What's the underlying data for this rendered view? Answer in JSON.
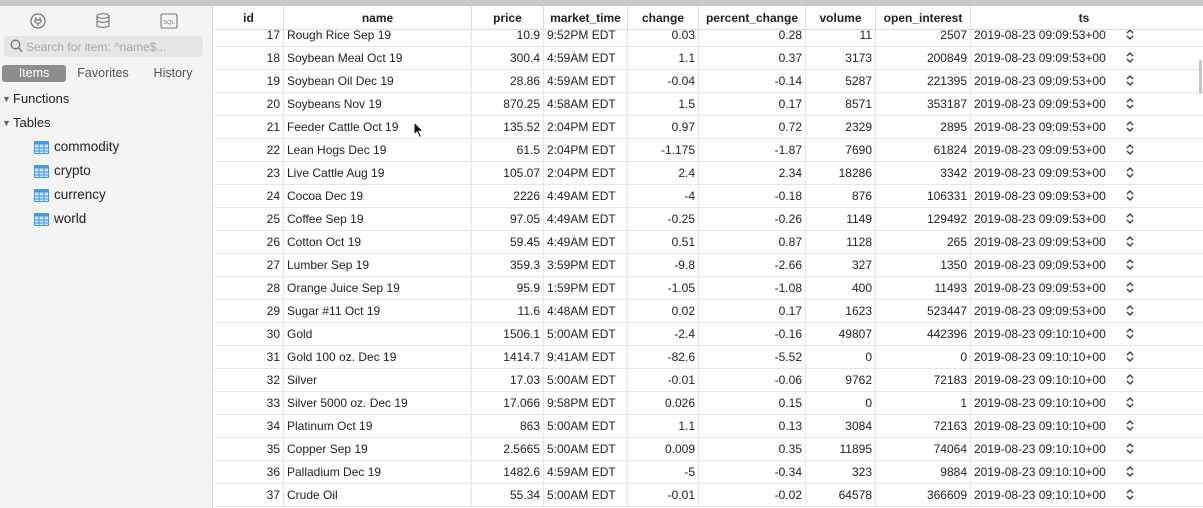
{
  "sidebar": {
    "toolbar_icons": [
      "connection-icon",
      "database-icon",
      "sql-icon"
    ],
    "sql_icon_text": "SQL",
    "search": {
      "placeholder": "Search for item: ^name$...",
      "value": ""
    },
    "tabs": [
      {
        "label": "Items",
        "active": true
      },
      {
        "label": "Favorites",
        "active": false
      },
      {
        "label": "History",
        "active": false
      }
    ],
    "sections": {
      "functions": "Functions",
      "tables": "Tables"
    },
    "tables": [
      "commodity",
      "crypto",
      "currency",
      "world"
    ]
  },
  "grid": {
    "columns": [
      "id",
      "name",
      "price",
      "market_time",
      "change",
      "percent_change",
      "volume",
      "open_interest",
      "ts"
    ],
    "rows": [
      [
        "17",
        "Rough Rice Sep 19",
        "10.9",
        "9:52PM EDT",
        "0.03",
        "0.28",
        "11",
        "2507",
        "2019-08-23 09:09:53+00"
      ],
      [
        "18",
        "Soybean Meal Oct 19",
        "300.4",
        "4:59AM EDT",
        "1.1",
        "0.37",
        "3173",
        "200849",
        "2019-08-23 09:09:53+00"
      ],
      [
        "19",
        "Soybean Oil Dec 19",
        "28.86",
        "4:59AM EDT",
        "-0.04",
        "-0.14",
        "5287",
        "221395",
        "2019-08-23 09:09:53+00"
      ],
      [
        "20",
        "Soybeans Nov 19",
        "870.25",
        "4:58AM EDT",
        "1.5",
        "0.17",
        "8571",
        "353187",
        "2019-08-23 09:09:53+00"
      ],
      [
        "21",
        "Feeder Cattle Oct 19",
        "135.52",
        "2:04PM EDT",
        "0.97",
        "0.72",
        "2329",
        "2895",
        "2019-08-23 09:09:53+00"
      ],
      [
        "22",
        "Lean Hogs Dec 19",
        "61.5",
        "2:04PM EDT",
        "-1.175",
        "-1.87",
        "7690",
        "61824",
        "2019-08-23 09:09:53+00"
      ],
      [
        "23",
        "Live Cattle Aug 19",
        "105.07",
        "2:04PM EDT",
        "2.4",
        "2.34",
        "18286",
        "3342",
        "2019-08-23 09:09:53+00"
      ],
      [
        "24",
        "Cocoa Dec 19",
        "2226",
        "4:49AM EDT",
        "-4",
        "-0.18",
        "876",
        "106331",
        "2019-08-23 09:09:53+00"
      ],
      [
        "25",
        "Coffee Sep 19",
        "97.05",
        "4:49AM EDT",
        "-0.25",
        "-0.26",
        "1149",
        "129492",
        "2019-08-23 09:09:53+00"
      ],
      [
        "26",
        "Cotton Oct 19",
        "59.45",
        "4:49AM EDT",
        "0.51",
        "0.87",
        "1128",
        "265",
        "2019-08-23 09:09:53+00"
      ],
      [
        "27",
        "Lumber Sep 19",
        "359.3",
        "3:59PM EDT",
        "-9.8",
        "-2.66",
        "327",
        "1350",
        "2019-08-23 09:09:53+00"
      ],
      [
        "28",
        "Orange Juice Sep 19",
        "95.9",
        "1:59PM EDT",
        "-1.05",
        "-1.08",
        "400",
        "11493",
        "2019-08-23 09:09:53+00"
      ],
      [
        "29",
        "Sugar #11 Oct 19",
        "11.6",
        "4:48AM EDT",
        "0.02",
        "0.17",
        "1623",
        "523447",
        "2019-08-23 09:09:53+00"
      ],
      [
        "30",
        "Gold",
        "1506.1",
        "5:00AM EDT",
        "-2.4",
        "-0.16",
        "49807",
        "442396",
        "2019-08-23 09:10:10+00"
      ],
      [
        "31",
        "Gold 100 oz. Dec 19",
        "1414.7",
        "9:41AM EDT",
        "-82.6",
        "-5.52",
        "0",
        "0",
        "2019-08-23 09:10:10+00"
      ],
      [
        "32",
        "Silver",
        "17.03",
        "5:00AM EDT",
        "-0.01",
        "-0.06",
        "9762",
        "72183",
        "2019-08-23 09:10:10+00"
      ],
      [
        "33",
        "Silver 5000 oz. Dec 19",
        "17.066",
        "9:58PM EDT",
        "0.026",
        "0.15",
        "0",
        "1",
        "2019-08-23 09:10:10+00"
      ],
      [
        "34",
        "Platinum Oct 19",
        "863",
        "5:00AM EDT",
        "1.1",
        "0.13",
        "3084",
        "72163",
        "2019-08-23 09:10:10+00"
      ],
      [
        "35",
        "Copper Sep 19",
        "2.5665",
        "5:00AM EDT",
        "0.009",
        "0.35",
        "11895",
        "74064",
        "2019-08-23 09:10:10+00"
      ],
      [
        "36",
        "Palladium Dec 19",
        "1482.6",
        "4:59AM EDT",
        "-5",
        "-0.34",
        "323",
        "9884",
        "2019-08-23 09:10:10+00"
      ],
      [
        "37",
        "Crude Oil",
        "55.34",
        "5:00AM EDT",
        "-0.01",
        "-0.02",
        "64578",
        "366609",
        "2019-08-23 09:10:10+00"
      ]
    ]
  }
}
